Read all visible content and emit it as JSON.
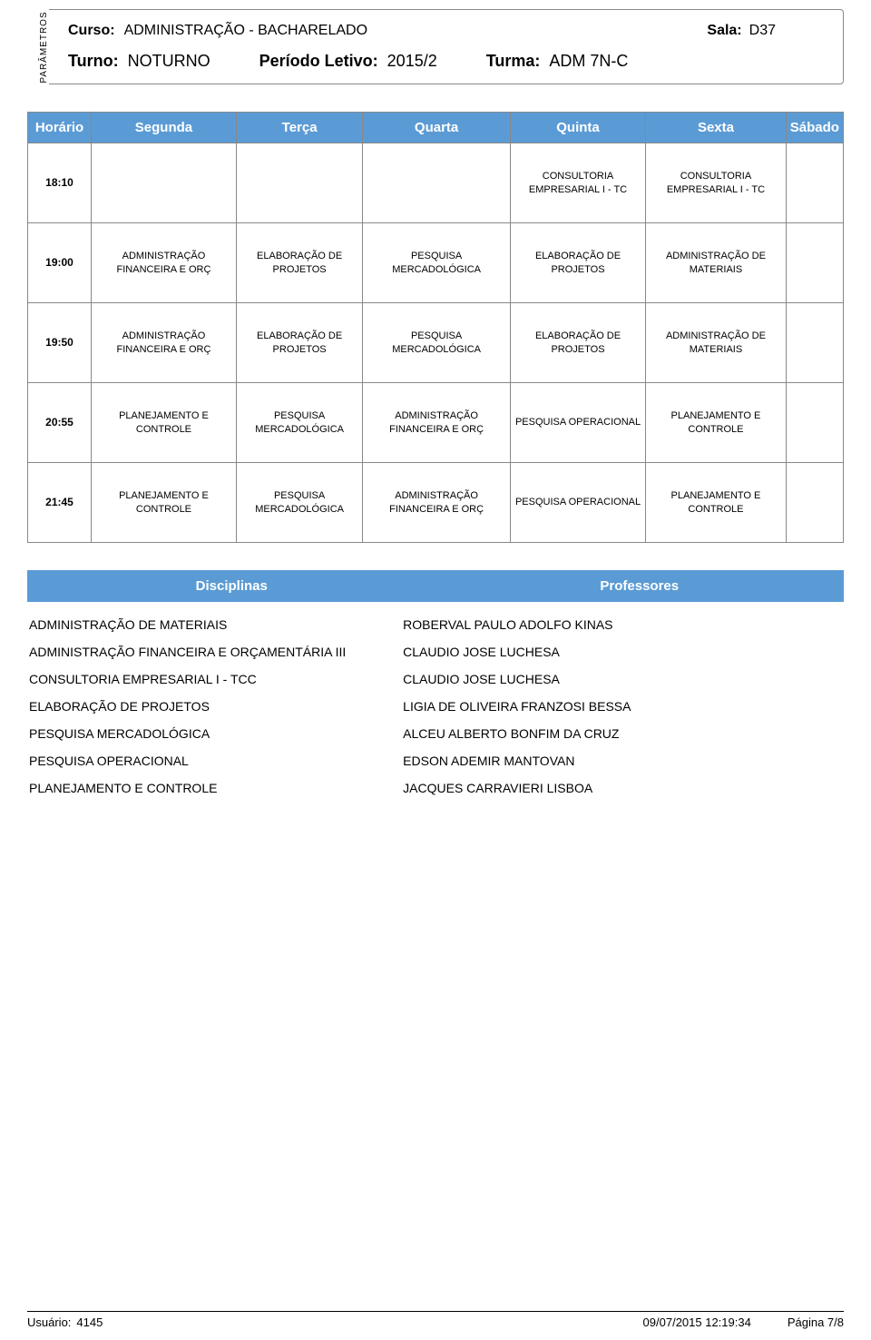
{
  "colors": {
    "header_bg": "#5b9bd5",
    "header_text": "#ffffff",
    "border": "#888888",
    "page_bg": "#ffffff",
    "text": "#000000"
  },
  "side_label": "PARÂMETROS",
  "header": {
    "curso_label": "Curso:",
    "curso_value": "ADMINISTRAÇÃO - BACHARELADO",
    "sala_label": "Sala:",
    "sala_value": "D37",
    "turno_label": "Turno:",
    "turno_value": "NOTURNO",
    "periodo_label": "Período Letivo:",
    "periodo_value": "2015/2",
    "turma_label": "Turma:",
    "turma_value": "ADM 7N-C"
  },
  "schedule": {
    "columns": [
      "Horário",
      "Segunda",
      "Terça",
      "Quarta",
      "Quinta",
      "Sexta",
      "Sábado"
    ],
    "rows": [
      {
        "time": "18:10",
        "cells": [
          "",
          "",
          "",
          "CONSULTORIA EMPRESARIAL I - TC",
          "CONSULTORIA EMPRESARIAL I - TC",
          ""
        ]
      },
      {
        "time": "19:00",
        "cells": [
          "ADMINISTRAÇÃO FINANCEIRA E ORÇ",
          "ELABORAÇÃO DE PROJETOS",
          "PESQUISA MERCADOLÓGICA",
          "ELABORAÇÃO DE PROJETOS",
          "ADMINISTRAÇÃO DE MATERIAIS",
          ""
        ]
      },
      {
        "time": "19:50",
        "cells": [
          "ADMINISTRAÇÃO FINANCEIRA E ORÇ",
          "ELABORAÇÃO DE PROJETOS",
          "PESQUISA MERCADOLÓGICA",
          "ELABORAÇÃO DE PROJETOS",
          "ADMINISTRAÇÃO DE MATERIAIS",
          ""
        ]
      },
      {
        "time": "20:55",
        "cells": [
          "PLANEJAMENTO E CONTROLE",
          "PESQUISA MERCADOLÓGICA",
          "ADMINISTRAÇÃO FINANCEIRA E ORÇ",
          "PESQUISA OPERACIONAL",
          "PLANEJAMENTO E CONTROLE",
          ""
        ]
      },
      {
        "time": "21:45",
        "cells": [
          "PLANEJAMENTO E CONTROLE",
          "PESQUISA MERCADOLÓGICA",
          "ADMINISTRAÇÃO FINANCEIRA E ORÇ",
          "PESQUISA OPERACIONAL",
          "PLANEJAMENTO E CONTROLE",
          ""
        ]
      }
    ]
  },
  "disc_table": {
    "headers": [
      "Disciplinas",
      "Professores"
    ],
    "rows": [
      [
        "ADMINISTRAÇÃO DE MATERIAIS",
        "ROBERVAL PAULO ADOLFO KINAS"
      ],
      [
        "ADMINISTRAÇÃO FINANCEIRA E ORÇAMENTÁRIA III",
        "CLAUDIO JOSE LUCHESA"
      ],
      [
        "CONSULTORIA EMPRESARIAL I - TCC",
        "CLAUDIO JOSE LUCHESA"
      ],
      [
        "ELABORAÇÃO DE PROJETOS",
        "LIGIA DE OLIVEIRA FRANZOSI BESSA"
      ],
      [
        "PESQUISA MERCADOLÓGICA",
        "ALCEU ALBERTO BONFIM DA CRUZ"
      ],
      [
        "PESQUISA OPERACIONAL",
        "EDSON ADEMIR MANTOVAN"
      ],
      [
        "PLANEJAMENTO E CONTROLE",
        "JACQUES CARRAVIERI LISBOA"
      ]
    ]
  },
  "footer": {
    "usuario_label": "Usuário:",
    "usuario_value": "4145",
    "timestamp": "09/07/2015  12:19:34",
    "page": "Página 7/8"
  }
}
